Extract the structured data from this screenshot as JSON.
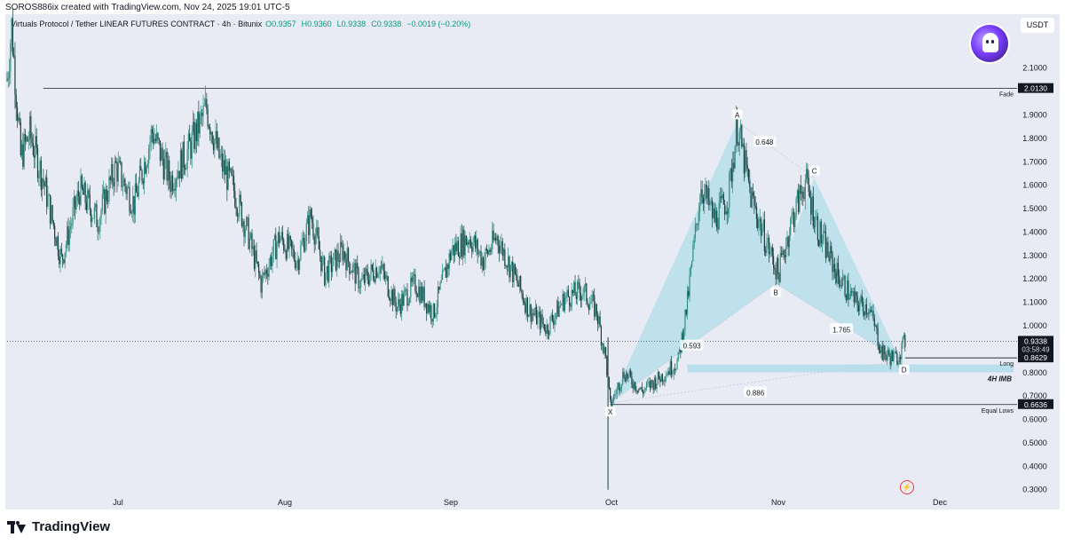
{
  "header": {
    "created_line": "SOROS886ix created with TradingView.com, Nov 24, 2025 19:01 UTC-5"
  },
  "legend": {
    "symbol": "Virtuals Protocol / Tether LINEAR FUTURES CONTRACT · 4h · Bitunix",
    "open": "O0.9357",
    "high": "H0.9360",
    "low": "L0.9338",
    "close": "C0.9338",
    "change": "−0.0019 (−0.20%)"
  },
  "currency_label": "USDT",
  "avatar_icon": "ghost-avatar-icon",
  "brand": {
    "name": "TradingView",
    "icon": "tradingview-logo-icon"
  },
  "colors": {
    "background": "#e8ebf4",
    "candle": "#1f6f6a",
    "pattern_fill": "#a8dbe8",
    "line": "#131722",
    "accent_red": "#f23645"
  },
  "chart_data": {
    "type": "candlestick",
    "x_axis": {
      "labels": [
        "Jul",
        "Aug",
        "Sep",
        "Oct",
        "Nov",
        "Dec"
      ]
    },
    "y_axis": {
      "range": [
        0.28,
        2.33
      ],
      "ticks": [
        "2.1000",
        "1.9000",
        "1.8000",
        "1.7000",
        "1.6000",
        "1.5000",
        "1.4000",
        "1.3000",
        "1.2000",
        "1.1000",
        "1.0000",
        "0.8000",
        "0.7000",
        "0.6000",
        "0.5000",
        "0.4000",
        "0.3000"
      ]
    },
    "price_series_path": [
      {
        "t": 0,
        "v": 2.05
      },
      {
        "t": 2,
        "v": 2.28
      },
      {
        "t": 6,
        "v": 1.72
      },
      {
        "t": 10,
        "v": 1.82
      },
      {
        "t": 16,
        "v": 1.62
      },
      {
        "t": 24,
        "v": 1.28
      },
      {
        "t": 32,
        "v": 1.58
      },
      {
        "t": 40,
        "v": 1.45
      },
      {
        "t": 48,
        "v": 1.68
      },
      {
        "t": 56,
        "v": 1.52
      },
      {
        "t": 64,
        "v": 1.83
      },
      {
        "t": 72,
        "v": 1.62
      },
      {
        "t": 80,
        "v": 1.75
      },
      {
        "t": 88,
        "v": 1.93
      },
      {
        "t": 94,
        "v": 1.7
      },
      {
        "t": 100,
        "v": 1.58
      },
      {
        "t": 106,
        "v": 1.4
      },
      {
        "t": 112,
        "v": 1.18
      },
      {
        "t": 120,
        "v": 1.38
      },
      {
        "t": 128,
        "v": 1.28
      },
      {
        "t": 134,
        "v": 1.47
      },
      {
        "t": 140,
        "v": 1.22
      },
      {
        "t": 148,
        "v": 1.32
      },
      {
        "t": 156,
        "v": 1.18
      },
      {
        "t": 164,
        "v": 1.26
      },
      {
        "t": 172,
        "v": 1.08
      },
      {
        "t": 180,
        "v": 1.18
      },
      {
        "t": 188,
        "v": 1.05
      },
      {
        "t": 196,
        "v": 1.32
      },
      {
        "t": 204,
        "v": 1.38
      },
      {
        "t": 210,
        "v": 1.28
      },
      {
        "t": 216,
        "v": 1.38
      },
      {
        "t": 222,
        "v": 1.25
      },
      {
        "t": 230,
        "v": 1.07
      },
      {
        "t": 238,
        "v": 0.99
      },
      {
        "t": 246,
        "v": 1.12
      },
      {
        "t": 254,
        "v": 1.15
      },
      {
        "t": 260,
        "v": 1.06
      },
      {
        "t": 264,
        "v": 0.86
      },
      {
        "t": 266,
        "v": 0.66
      },
      {
        "t": 272,
        "v": 0.8
      },
      {
        "t": 280,
        "v": 0.72
      },
      {
        "t": 288,
        "v": 0.78
      },
      {
        "t": 296,
        "v": 0.85
      },
      {
        "t": 300,
        "v": 1.1
      },
      {
        "t": 306,
        "v": 1.6
      },
      {
        "t": 312,
        "v": 1.45
      },
      {
        "t": 318,
        "v": 1.55
      },
      {
        "t": 322,
        "v": 1.86
      },
      {
        "t": 328,
        "v": 1.55
      },
      {
        "t": 334,
        "v": 1.38
      },
      {
        "t": 340,
        "v": 1.22
      },
      {
        "t": 346,
        "v": 1.45
      },
      {
        "t": 352,
        "v": 1.62
      },
      {
        "t": 358,
        "v": 1.4
      },
      {
        "t": 366,
        "v": 1.22
      },
      {
        "t": 374,
        "v": 1.1
      },
      {
        "t": 380,
        "v": 1.08
      },
      {
        "t": 386,
        "v": 0.88
      },
      {
        "t": 392,
        "v": 0.86
      },
      {
        "t": 396,
        "v": 0.93
      }
    ],
    "low_wick": {
      "t": 265,
      "v": 0.3
    },
    "harmonic_pattern": {
      "points": [
        {
          "label": "X",
          "t": 266,
          "v": 0.67
        },
        {
          "label": "A",
          "t": 322,
          "v": 1.87
        },
        {
          "label": "B",
          "t": 339,
          "v": 1.18
        },
        {
          "label": "C",
          "t": 356,
          "v": 1.63
        },
        {
          "label": "D",
          "t": 394,
          "v": 0.85
        }
      ],
      "ratios": [
        {
          "label": "0.648",
          "t": 334,
          "v": 1.78
        },
        {
          "label": "0.593",
          "t": 302,
          "v": 0.91
        },
        {
          "label": "1.765",
          "t": 368,
          "v": 0.98
        },
        {
          "label": "0.886",
          "t": 330,
          "v": 0.71
        }
      ]
    },
    "horizontal_levels": [
      {
        "name": "Fade",
        "value": 2.013,
        "price_label": "2.0130",
        "t_start": 16
      },
      {
        "name": "Long",
        "value": 0.8629,
        "price_label": "0.8629",
        "t_start": 396
      },
      {
        "name": "Equal Lows",
        "value": 0.6636,
        "price_label": "0.6636",
        "t_start": 266
      }
    ],
    "current_price": {
      "value": 0.9338,
      "price_label": "0.9338",
      "countdown": "03:58:49"
    },
    "imbalance_zone": {
      "label": "4H IMB",
      "from": 0.801,
      "to": 0.835,
      "t_start": 300
    }
  }
}
